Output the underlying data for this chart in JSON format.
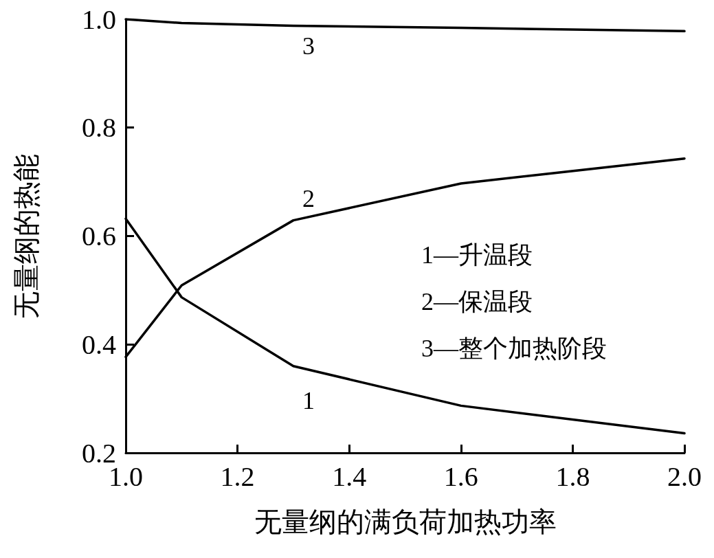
{
  "chart_data": {
    "type": "line",
    "xlabel": "无量纲的满负荷加热功率",
    "ylabel": "无量纲的热能",
    "x": [
      1.0,
      1.1,
      1.3,
      1.6,
      2.0
    ],
    "series": [
      {
        "name": "1",
        "color": "#000000",
        "values": [
          0.632,
          0.487,
          0.36,
          0.287,
          0.236
        ]
      },
      {
        "name": "2",
        "color": "#000000",
        "values": [
          0.377,
          0.509,
          0.629,
          0.697,
          0.743
        ]
      },
      {
        "name": "3",
        "color": "#000000",
        "values": [
          1.0,
          0.993,
          0.988,
          0.984,
          0.978
        ]
      }
    ],
    "xlim": [
      1.0,
      2.0
    ],
    "ylim": [
      0.2,
      1.0
    ],
    "xticks": [
      {
        "value": 1.0,
        "label": "1.0"
      },
      {
        "value": 1.2,
        "label": "1.2"
      },
      {
        "value": 1.4,
        "label": "1.4"
      },
      {
        "value": 1.6,
        "label": "1.6"
      },
      {
        "value": 1.8,
        "label": "1.8"
      },
      {
        "value": 2.0,
        "label": "2.0"
      }
    ],
    "yticks": [
      {
        "value": 0.2,
        "label": "0.2"
      },
      {
        "value": 0.4,
        "label": "0.4"
      },
      {
        "value": 0.6,
        "label": "0.6"
      },
      {
        "value": 0.8,
        "label": "0.8"
      },
      {
        "value": 1.0,
        "label": "1.0"
      }
    ],
    "grid": false,
    "marker": "none",
    "line_style": "solid",
    "annotations": [
      "1—升温段",
      "2—保温段",
      "3—整个加热阶段"
    ]
  }
}
